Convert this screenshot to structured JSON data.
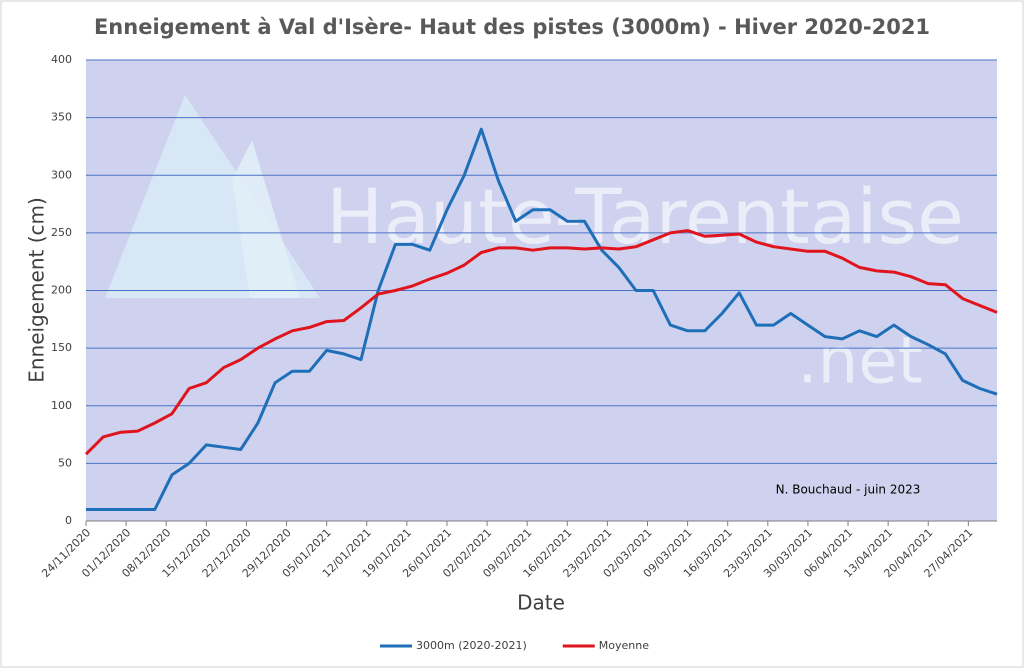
{
  "chart_data": {
    "type": "line",
    "title": "Enneigement à Val d'Isère- Haut des pistes (3000m) - Hiver 2020-2021",
    "y_label": "Enneigement (cm)",
    "x_label": "Date",
    "annotation": "N. Bouchaud - juin 2023",
    "watermark": [
      "Haute-Tarentaise",
      ".net"
    ],
    "x": [
      "2020-11-24",
      "2020-11-27",
      "2020-11-30",
      "2020-12-03",
      "2020-12-06",
      "2020-12-09",
      "2020-12-12",
      "2020-12-15",
      "2020-12-18",
      "2020-12-21",
      "2020-12-24",
      "2020-12-27",
      "2020-12-30",
      "2021-01-02",
      "2021-01-05",
      "2021-01-08",
      "2021-01-11",
      "2021-01-14",
      "2021-01-17",
      "2021-01-20",
      "2021-01-23",
      "2021-01-26",
      "2021-01-29",
      "2021-02-01",
      "2021-02-04",
      "2021-02-07",
      "2021-02-10",
      "2021-02-13",
      "2021-02-16",
      "2021-02-19",
      "2021-02-22",
      "2021-02-25",
      "2021-02-28",
      "2021-03-03",
      "2021-03-06",
      "2021-03-09",
      "2021-03-12",
      "2021-03-15",
      "2021-03-18",
      "2021-03-21",
      "2021-03-24",
      "2021-03-27",
      "2021-03-30",
      "2021-04-02",
      "2021-04-05",
      "2021-04-08",
      "2021-04-11",
      "2021-04-14",
      "2021-04-17",
      "2021-04-20",
      "2021-04-23",
      "2021-04-26",
      "2021-04-29",
      "2021-05-02"
    ],
    "series": [
      {
        "name": "3000m (2020-2021)",
        "color": "#1f6fb8",
        "values": [
          10,
          10,
          10,
          10,
          10,
          40,
          50,
          66,
          64,
          62,
          85,
          120,
          130,
          130,
          148,
          145,
          140,
          200,
          240,
          240,
          235,
          270,
          300,
          340,
          295,
          260,
          270,
          270,
          260,
          260,
          235,
          220,
          200,
          200,
          170,
          165,
          165,
          180,
          198,
          170,
          170,
          180,
          170,
          160,
          158,
          165,
          160,
          170,
          160,
          153,
          145,
          122,
          115,
          110
        ]
      },
      {
        "name": "Moyenne",
        "color": "#e0141c",
        "values": [
          58,
          73,
          77,
          78,
          85,
          93,
          115,
          120,
          133,
          140,
          150,
          158,
          165,
          168,
          173,
          174,
          185,
          197,
          200,
          204,
          210,
          215,
          222,
          233,
          237,
          237,
          235,
          237,
          237,
          236,
          237,
          236,
          238,
          244,
          250,
          252,
          247,
          248,
          249,
          242,
          238,
          236,
          234,
          234,
          228,
          220,
          217,
          216,
          212,
          206,
          205,
          193,
          187,
          181
        ]
      }
    ],
    "xlim": [
      "2020-11-24",
      "2021-05-02"
    ],
    "xticks": [
      {
        "value": "2020-11-24",
        "label": "24/11/2020"
      },
      {
        "value": "2020-12-01",
        "label": "01/12/2020"
      },
      {
        "value": "2020-12-08",
        "label": "08/12/2020"
      },
      {
        "value": "2020-12-15",
        "label": "15/12/2020"
      },
      {
        "value": "2020-12-22",
        "label": "22/12/2020"
      },
      {
        "value": "2020-12-29",
        "label": "29/12/2020"
      },
      {
        "value": "2021-01-05",
        "label": "05/01/2021"
      },
      {
        "value": "2021-01-12",
        "label": "12/01/2021"
      },
      {
        "value": "2021-01-19",
        "label": "19/01/2021"
      },
      {
        "value": "2021-01-26",
        "label": "26/01/2021"
      },
      {
        "value": "2021-02-02",
        "label": "02/02/2021"
      },
      {
        "value": "2021-02-09",
        "label": "09/02/2021"
      },
      {
        "value": "2021-02-16",
        "label": "16/02/2021"
      },
      {
        "value": "2021-02-23",
        "label": "23/02/2021"
      },
      {
        "value": "2021-03-02",
        "label": "02/03/2021"
      },
      {
        "value": "2021-03-09",
        "label": "09/03/2021"
      },
      {
        "value": "2021-03-16",
        "label": "16/03/2021"
      },
      {
        "value": "2021-03-23",
        "label": "23/03/2021"
      },
      {
        "value": "2021-03-30",
        "label": "30/03/2021"
      },
      {
        "value": "2021-04-06",
        "label": "06/04/2021"
      },
      {
        "value": "2021-04-13",
        "label": "13/04/2021"
      },
      {
        "value": "2021-04-20",
        "label": "20/04/2021"
      },
      {
        "value": "2021-04-27",
        "label": "27/04/2021"
      }
    ],
    "ylim": [
      0,
      400
    ],
    "yticks": [
      0,
      50,
      100,
      150,
      200,
      250,
      300,
      350,
      400
    ],
    "grid": true,
    "legend": "bottom"
  }
}
